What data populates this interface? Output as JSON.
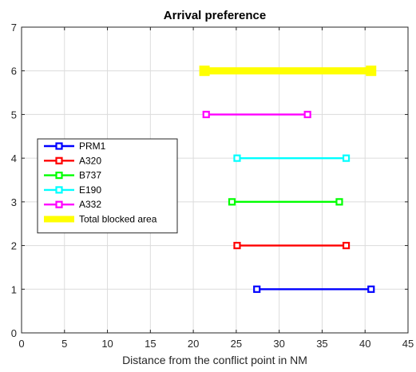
{
  "chart_data": {
    "type": "line",
    "title": "Arrival preference",
    "xlabel": "Distance from the conflict point in NM",
    "ylabel": "",
    "xlim": [
      0,
      45
    ],
    "ylim": [
      0,
      7
    ],
    "xticks": [
      0,
      5,
      10,
      15,
      20,
      25,
      30,
      35,
      40,
      45
    ],
    "yticks": [
      0,
      1,
      2,
      3,
      4,
      5,
      6,
      7
    ],
    "grid": true,
    "legend_position": "left",
    "series": [
      {
        "name": "PRM1",
        "color": "#0000ff",
        "x": [
          27.4,
          40.7
        ],
        "y": [
          1,
          1
        ]
      },
      {
        "name": "A320",
        "color": "#ff0000",
        "x": [
          25.1,
          37.8
        ],
        "y": [
          2,
          2
        ]
      },
      {
        "name": "B737",
        "color": "#00ff00",
        "x": [
          24.5,
          37.0
        ],
        "y": [
          3,
          3
        ]
      },
      {
        "name": "E190",
        "color": "#00ffff",
        "x": [
          25.1,
          37.8
        ],
        "y": [
          4,
          4
        ]
      },
      {
        "name": "A332",
        "color": "#ff00ff",
        "x": [
          21.5,
          33.3
        ],
        "y": [
          5,
          5
        ]
      },
      {
        "name": "Total blocked area",
        "color": "#ffff00",
        "x": [
          21.3,
          40.7
        ],
        "y": [
          6,
          6
        ],
        "thick": true
      }
    ]
  }
}
